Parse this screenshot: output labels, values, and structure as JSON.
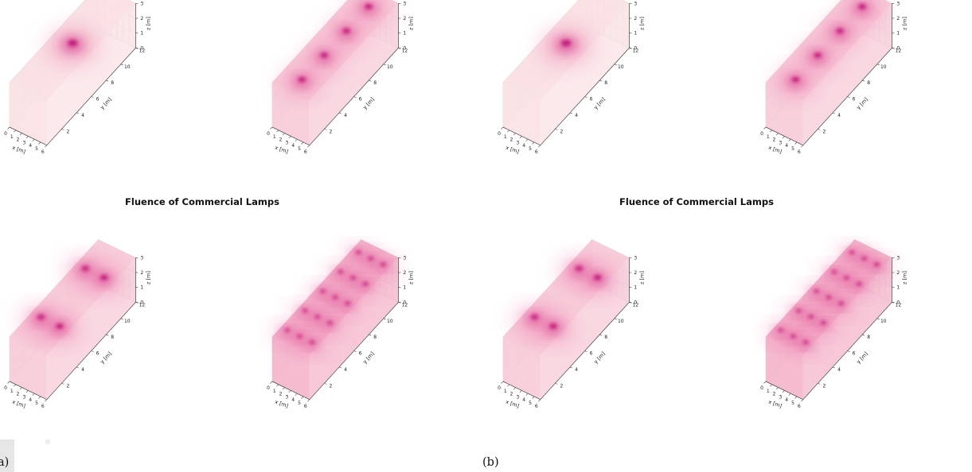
{
  "figure": {
    "title": "Fluence of Commercial Lamps",
    "panel_labels": [
      "a)",
      "(b)"
    ]
  },
  "colors": {
    "hot": "#c2187a",
    "warm": "#ee7aae",
    "cool": "#f9dcdc",
    "grid": "#d4d4d4",
    "axis": "#444444"
  },
  "chart_data": [
    {
      "type": "scatter",
      "panel": "a",
      "xlabel": "x [m]",
      "ylabel": "y [m]",
      "zlabel": "z [m]",
      "xlim": [
        0,
        6
      ],
      "ylim": [
        0,
        12
      ],
      "zlim": [
        0,
        3
      ],
      "xticks": [
        "0",
        "1",
        "2",
        "3",
        "4",
        "5",
        "6"
      ],
      "yticks": [
        "2",
        "4",
        "6",
        "8",
        "10",
        "12"
      ],
      "zticks": [
        "0",
        "1",
        "2",
        "3"
      ],
      "series": [
        {
          "x": [
            3
          ],
          "y": [
            6
          ],
          "z": [
            3
          ]
        }
      ]
    },
    {
      "type": "scatter",
      "panel": "a",
      "xlabel": "x [m]",
      "ylabel": "y [m]",
      "zlabel": "z [m]",
      "xlim": [
        0,
        6
      ],
      "ylim": [
        0,
        12
      ],
      "zlim": [
        0,
        3
      ],
      "xticks": [
        "0",
        "1",
        "2",
        "3",
        "4",
        "5",
        "6"
      ],
      "yticks": [
        "2",
        "4",
        "6",
        "8",
        "10",
        "12"
      ],
      "zticks": [
        "0",
        "1",
        "2",
        "3"
      ],
      "series": [
        {
          "x": [
            3,
            3,
            3,
            3
          ],
          "y": [
            1.5,
            4.5,
            7.5,
            10.5
          ],
          "z": [
            3,
            3,
            3,
            3
          ]
        }
      ]
    },
    {
      "type": "scatter",
      "panel": "b",
      "xlabel": "x [m]",
      "ylabel": "y [m]",
      "zlabel": "z [m]",
      "xlim": [
        0,
        6
      ],
      "ylim": [
        0,
        12
      ],
      "zlim": [
        0,
        3
      ],
      "xticks": [
        "0",
        "1",
        "2",
        "3",
        "4",
        "5",
        "6"
      ],
      "yticks": [
        "2",
        "4",
        "6",
        "8",
        "10",
        "12"
      ],
      "zticks": [
        "0",
        "1",
        "2",
        "3"
      ],
      "series": [
        {
          "x": [
            3
          ],
          "y": [
            6
          ],
          "z": [
            3
          ]
        }
      ]
    },
    {
      "type": "scatter",
      "panel": "b",
      "xlabel": "x [m]",
      "ylabel": "y [m]",
      "zlabel": "z [m]",
      "xlim": [
        0,
        6
      ],
      "ylim": [
        0,
        12
      ],
      "zlim": [
        0,
        3
      ],
      "xticks": [
        "0",
        "1",
        "2",
        "3",
        "4",
        "5",
        "6"
      ],
      "yticks": [
        "2",
        "4",
        "6",
        "8",
        "10",
        "12"
      ],
      "zticks": [
        "0",
        "1",
        "2",
        "3"
      ],
      "series": [
        {
          "x": [
            3,
            3,
            3,
            3
          ],
          "y": [
            1.5,
            4.5,
            7.5,
            10.5
          ],
          "z": [
            3,
            3,
            3,
            3
          ]
        }
      ]
    },
    {
      "type": "scatter",
      "panel": "a",
      "xlabel": "x [m]",
      "ylabel": "y [m]",
      "zlabel": "z [m]",
      "xlim": [
        0,
        6
      ],
      "ylim": [
        0,
        12
      ],
      "zlim": [
        0,
        3
      ],
      "xticks": [
        "0",
        "1",
        "2",
        "3",
        "4",
        "5",
        "6"
      ],
      "yticks": [
        "2",
        "4",
        "6",
        "8",
        "10",
        "12"
      ],
      "zticks": [
        "0",
        "1",
        "2",
        "3"
      ],
      "series": [
        {
          "x": [
            1.5,
            4.5,
            1.5,
            4.5
          ],
          "y": [
            3,
            3,
            9,
            9
          ],
          "z": [
            3,
            3,
            3,
            3
          ]
        }
      ]
    },
    {
      "type": "scatter",
      "panel": "a",
      "xlabel": "x [m]",
      "ylabel": "y [m]",
      "zlabel": "z [m]",
      "xlim": [
        0,
        6
      ],
      "ylim": [
        0,
        12
      ],
      "zlim": [
        0,
        3
      ],
      "xticks": [
        "0",
        "1",
        "2",
        "3",
        "4",
        "5",
        "6"
      ],
      "yticks": [
        "2",
        "4",
        "6",
        "8",
        "10",
        "12"
      ],
      "zticks": [
        "0",
        "1",
        "2",
        "3"
      ],
      "series": [
        {
          "x": [
            1,
            3,
            5,
            1,
            3,
            5,
            1,
            3,
            5,
            1,
            3,
            5,
            1,
            3,
            5
          ],
          "y": [
            1.2,
            1.2,
            1.2,
            3.6,
            3.6,
            3.6,
            6,
            6,
            6,
            8.4,
            8.4,
            8.4,
            10.8,
            10.8,
            10.8
          ],
          "z": [
            3,
            3,
            3,
            3,
            3,
            3,
            3,
            3,
            3,
            3,
            3,
            3,
            3,
            3,
            3
          ]
        }
      ]
    },
    {
      "type": "scatter",
      "panel": "b",
      "xlabel": "x [m]",
      "ylabel": "y [m]",
      "zlabel": "z [m]",
      "xlim": [
        0,
        6
      ],
      "ylim": [
        0,
        12
      ],
      "zlim": [
        0,
        3
      ],
      "xticks": [
        "0",
        "1",
        "2",
        "3",
        "4",
        "5",
        "6"
      ],
      "yticks": [
        "2",
        "4",
        "6",
        "8",
        "10",
        "12"
      ],
      "zticks": [
        "0",
        "1",
        "2",
        "3"
      ],
      "series": [
        {
          "x": [
            1.5,
            4.5,
            1.5,
            4.5
          ],
          "y": [
            3,
            3,
            9,
            9
          ],
          "z": [
            3,
            3,
            3,
            3
          ]
        }
      ]
    },
    {
      "type": "scatter",
      "panel": "b",
      "xlabel": "x [m]",
      "ylabel": "y [m]",
      "zlabel": "z [m]",
      "xlim": [
        0,
        6
      ],
      "ylim": [
        0,
        12
      ],
      "zlim": [
        0,
        3
      ],
      "xticks": [
        "0",
        "1",
        "2",
        "3",
        "4",
        "5",
        "6"
      ],
      "yticks": [
        "2",
        "4",
        "6",
        "8",
        "10",
        "12"
      ],
      "zticks": [
        "0",
        "1",
        "2",
        "3"
      ],
      "series": [
        {
          "x": [
            1,
            3,
            5,
            1,
            3,
            5,
            1,
            3,
            5,
            1,
            3,
            5,
            1,
            3,
            5
          ],
          "y": [
            1.2,
            1.2,
            1.2,
            3.6,
            3.6,
            3.6,
            6,
            6,
            6,
            8.4,
            8.4,
            8.4,
            10.8,
            10.8,
            10.8
          ],
          "z": [
            3,
            3,
            3,
            3,
            3,
            3,
            3,
            3,
            3,
            3,
            3,
            3,
            3,
            3,
            3
          ]
        }
      ]
    }
  ]
}
